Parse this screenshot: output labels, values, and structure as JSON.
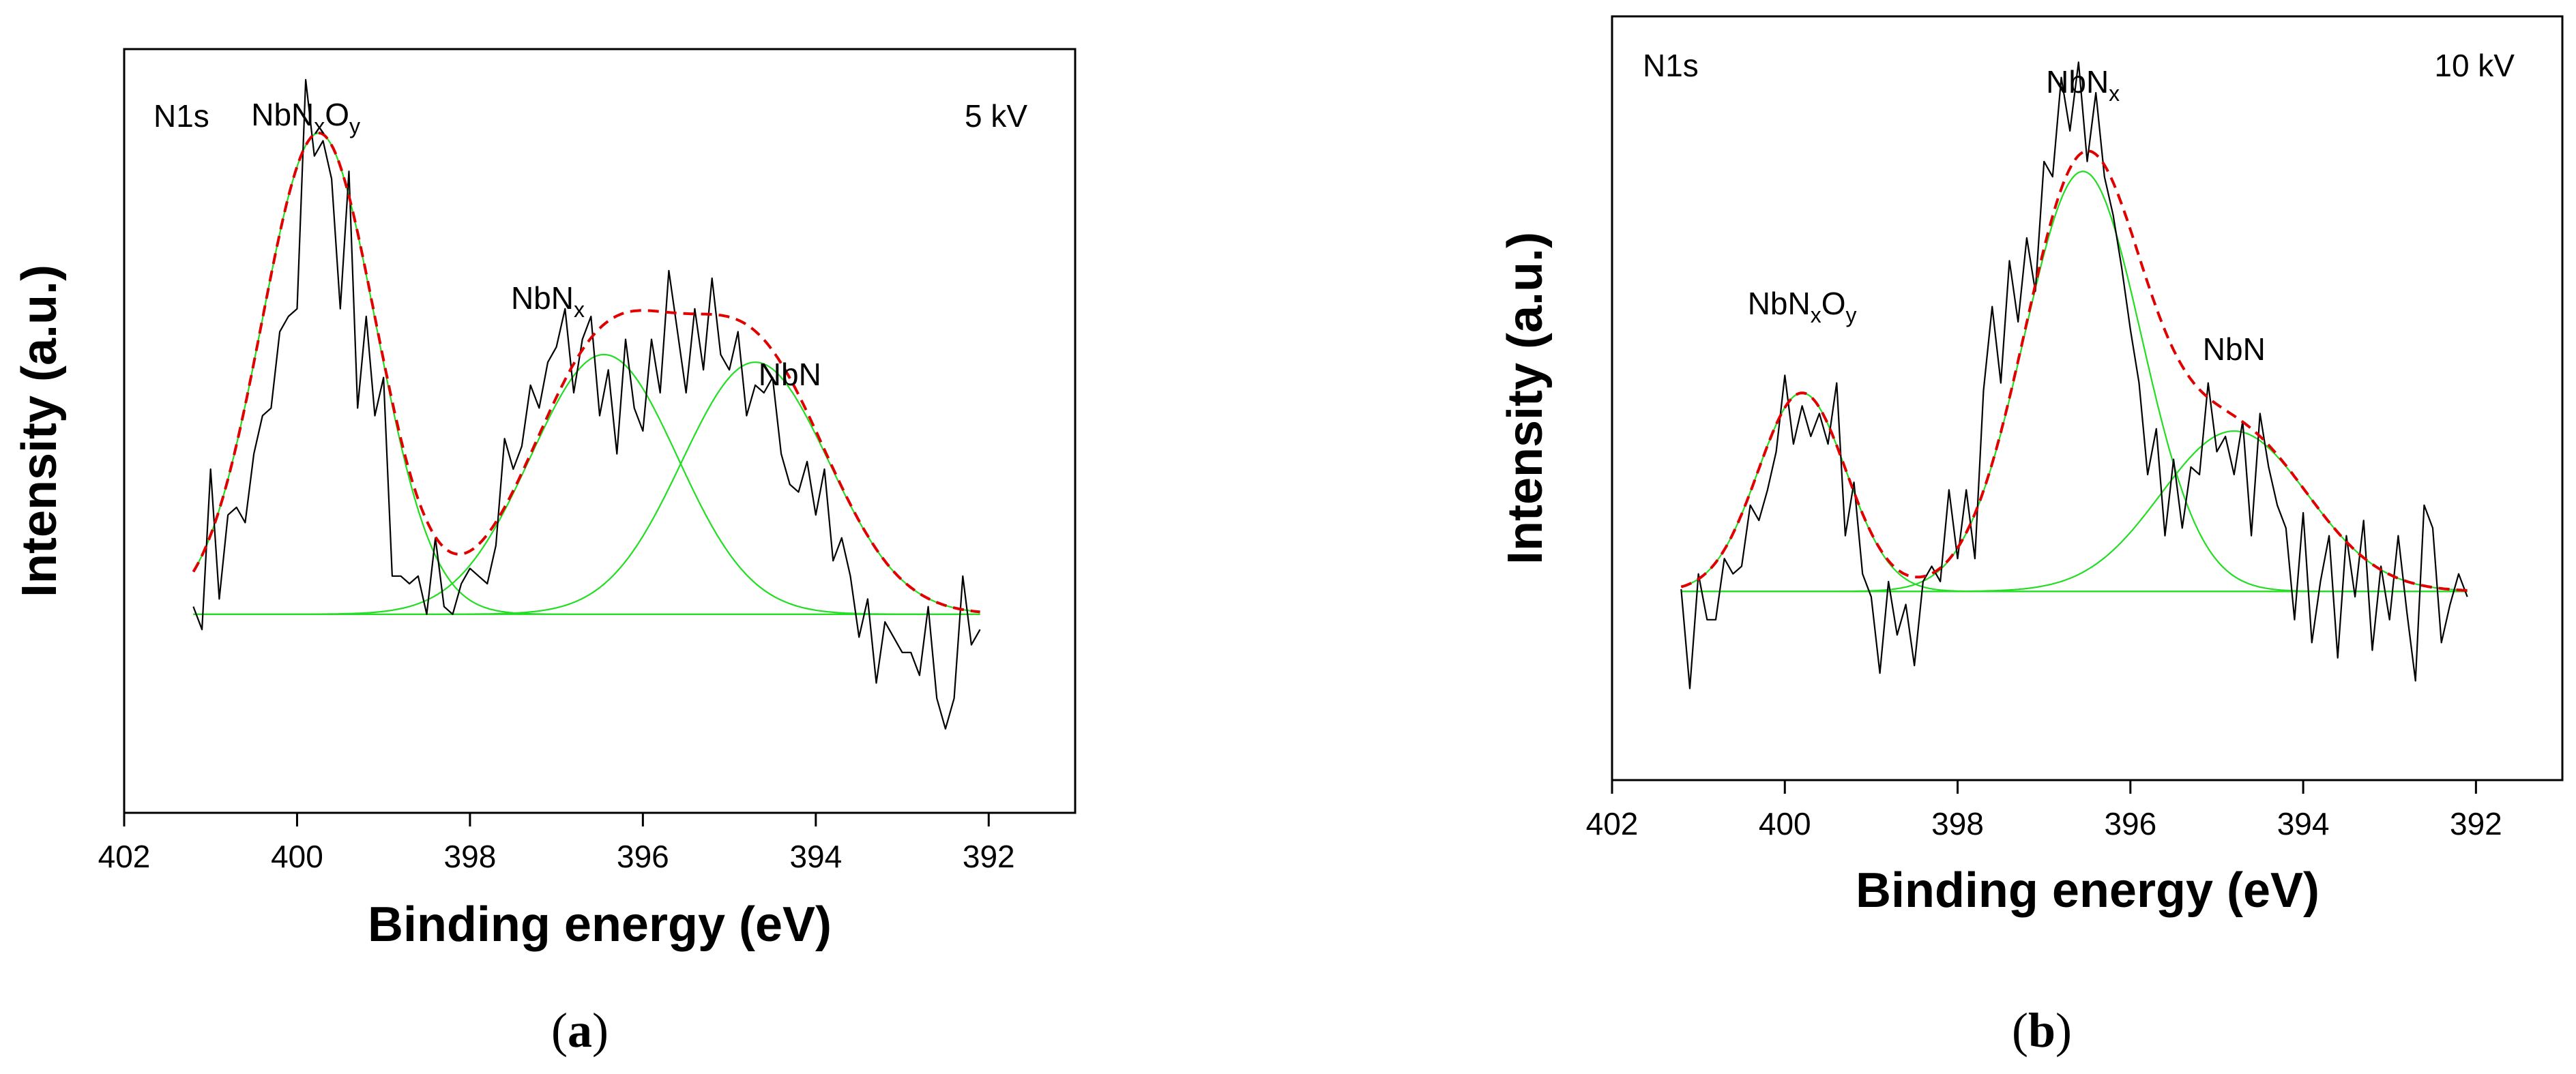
{
  "chart_data": [
    {
      "type": "line",
      "panel": "a",
      "caption": "a",
      "xlabel": "Binding energy (eV)",
      "ylabel": "Intensity (a.u.)",
      "xlim": [
        402,
        391
      ],
      "ylim": [
        0,
        1
      ],
      "x_ticks": [
        "402",
        "400",
        "398",
        "396",
        "394",
        "392"
      ],
      "corner_left": "N1s",
      "corner_right": "5 kV",
      "peaks": [
        {
          "label": "NbNxOy",
          "base": "NbN",
          "sub1": "x",
          "mid": "O",
          "sub2": "y",
          "center": 399.75,
          "height": 0.63,
          "fwhm": 1.55,
          "label_x": 399.9,
          "label_y": 0.9
        },
        {
          "label": "NbNx",
          "base": "NbN",
          "sub1": "x",
          "center": 396.45,
          "height": 0.34,
          "fwhm": 2.0,
          "label_x": 397.1,
          "label_y": 0.66
        },
        {
          "label": "NbN",
          "base": "NbN",
          "center": 394.7,
          "height": 0.33,
          "fwhm": 2.0,
          "label_x": 394.3,
          "label_y": 0.56
        }
      ],
      "baseline": 0.26,
      "fit_range": [
        401.2,
        392.1
      ],
      "raw": {
        "x": [
          401.2,
          401.1,
          401.0,
          400.9,
          400.8,
          400.7,
          400.6,
          400.5,
          400.4,
          400.3,
          400.2,
          400.1,
          400.0,
          399.9,
          399.8,
          399.7,
          399.6,
          399.5,
          399.4,
          399.3,
          399.2,
          399.1,
          399.0,
          398.9,
          398.8,
          398.7,
          398.6,
          398.5,
          398.4,
          398.3,
          398.2,
          398.1,
          398.0,
          397.9,
          397.8,
          397.7,
          397.6,
          397.5,
          397.4,
          397.3,
          397.2,
          397.1,
          397.0,
          396.9,
          396.8,
          396.7,
          396.6,
          396.5,
          396.4,
          396.3,
          396.2,
          396.1,
          396.0,
          395.9,
          395.8,
          395.7,
          395.6,
          395.5,
          395.4,
          395.3,
          395.2,
          395.1,
          395.0,
          394.9,
          394.8,
          394.7,
          394.6,
          394.5,
          394.4,
          394.3,
          394.2,
          394.1,
          394.0,
          393.9,
          393.8,
          393.7,
          393.6,
          393.5,
          393.4,
          393.3,
          393.2,
          393.1,
          393.0,
          392.9,
          392.8,
          392.7,
          392.6,
          392.5,
          392.4,
          392.3,
          392.2,
          392.1
        ],
        "y": [
          0.27,
          0.24,
          0.45,
          0.28,
          0.39,
          0.4,
          0.38,
          0.47,
          0.52,
          0.53,
          0.63,
          0.65,
          0.66,
          0.96,
          0.86,
          0.88,
          0.83,
          0.66,
          0.84,
          0.53,
          0.65,
          0.52,
          0.57,
          0.31,
          0.31,
          0.3,
          0.31,
          0.26,
          0.36,
          0.27,
          0.26,
          0.3,
          0.32,
          0.31,
          0.3,
          0.35,
          0.49,
          0.45,
          0.48,
          0.56,
          0.53,
          0.59,
          0.61,
          0.66,
          0.55,
          0.62,
          0.65,
          0.52,
          0.58,
          0.47,
          0.62,
          0.53,
          0.5,
          0.62,
          0.55,
          0.71,
          0.63,
          0.55,
          0.66,
          0.58,
          0.7,
          0.6,
          0.58,
          0.63,
          0.52,
          0.56,
          0.55,
          0.57,
          0.47,
          0.43,
          0.42,
          0.46,
          0.39,
          0.45,
          0.33,
          0.36,
          0.31,
          0.23,
          0.28,
          0.17,
          0.25,
          0.23,
          0.21,
          0.21,
          0.18,
          0.27,
          0.15,
          0.11,
          0.15,
          0.31,
          0.22,
          0.24
        ]
      }
    },
    {
      "type": "line",
      "panel": "b",
      "caption": "b",
      "xlabel": "Binding energy (eV)",
      "ylabel": "Intensity (a.u.)",
      "xlim": [
        402,
        391
      ],
      "ylim": [
        0,
        1
      ],
      "x_ticks": [
        "402",
        "400",
        "398",
        "396",
        "394",
        "392"
      ],
      "corner_left": "N1s",
      "corner_right": "10 kV",
      "peaks": [
        {
          "label": "NbNxOy",
          "base": "NbN",
          "sub1": "x",
          "mid": "O",
          "sub2": "y",
          "center": 399.8,
          "height": 0.26,
          "fwhm": 1.2,
          "label_x": 399.8,
          "label_y": 0.61
        },
        {
          "label": "NbNx",
          "base": "NbN",
          "sub1": "x",
          "center": 396.55,
          "height": 0.55,
          "fwhm": 1.6,
          "label_x": 396.55,
          "label_y": 0.9
        },
        {
          "label": "NbN",
          "base": "NbN",
          "center": 394.8,
          "height": 0.21,
          "fwhm": 2.0,
          "label_x": 394.8,
          "label_y": 0.55
        }
      ],
      "baseline": 0.247,
      "fit_range": [
        401.2,
        392.1
      ],
      "raw": {
        "x": [
          401.2,
          401.1,
          401.0,
          400.9,
          400.8,
          400.7,
          400.6,
          400.5,
          400.4,
          400.3,
          400.2,
          400.1,
          400.0,
          399.9,
          399.8,
          399.7,
          399.6,
          399.5,
          399.4,
          399.3,
          399.2,
          399.1,
          399.0,
          398.9,
          398.8,
          398.7,
          398.6,
          398.5,
          398.4,
          398.3,
          398.2,
          398.1,
          398.0,
          397.9,
          397.8,
          397.7,
          397.6,
          397.5,
          397.4,
          397.3,
          397.2,
          397.1,
          397.0,
          396.9,
          396.8,
          396.7,
          396.6,
          396.5,
          396.4,
          396.3,
          396.2,
          396.1,
          396.0,
          395.9,
          395.8,
          395.7,
          395.6,
          395.5,
          395.4,
          395.3,
          395.2,
          395.1,
          395.0,
          394.9,
          394.8,
          394.7,
          394.6,
          394.5,
          394.4,
          394.3,
          394.2,
          394.1,
          394.0,
          393.9,
          393.8,
          393.7,
          393.6,
          393.5,
          393.4,
          393.3,
          393.2,
          393.1,
          393.0,
          392.9,
          392.8,
          392.7,
          392.6,
          392.5,
          392.4,
          392.3,
          392.2,
          392.1
        ],
        "y": [
          0.25,
          0.12,
          0.27,
          0.21,
          0.21,
          0.29,
          0.27,
          0.28,
          0.36,
          0.34,
          0.38,
          0.43,
          0.53,
          0.44,
          0.49,
          0.45,
          0.48,
          0.44,
          0.52,
          0.32,
          0.39,
          0.27,
          0.24,
          0.14,
          0.26,
          0.19,
          0.23,
          0.15,
          0.26,
          0.28,
          0.26,
          0.38,
          0.29,
          0.38,
          0.29,
          0.51,
          0.62,
          0.52,
          0.68,
          0.6,
          0.71,
          0.64,
          0.81,
          0.79,
          0.92,
          0.85,
          0.94,
          0.81,
          0.9,
          0.79,
          0.74,
          0.67,
          0.59,
          0.52,
          0.4,
          0.46,
          0.32,
          0.42,
          0.33,
          0.41,
          0.4,
          0.52,
          0.43,
          0.45,
          0.4,
          0.47,
          0.32,
          0.48,
          0.41,
          0.36,
          0.33,
          0.21,
          0.35,
          0.18,
          0.26,
          0.32,
          0.16,
          0.32,
          0.24,
          0.34,
          0.17,
          0.28,
          0.21,
          0.32,
          0.22,
          0.13,
          0.36,
          0.33,
          0.18,
          0.23,
          0.27,
          0.24
        ]
      }
    }
  ]
}
